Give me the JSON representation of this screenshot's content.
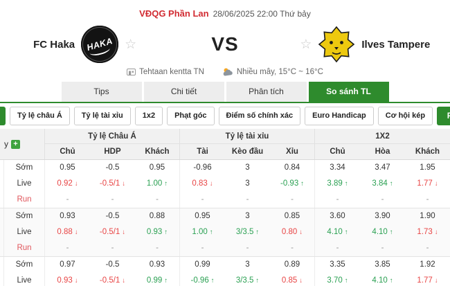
{
  "header": {
    "league": "VĐQG Phần Lan",
    "datetime": "28/06/2025 22:00 Thứ bảy",
    "vs": "VS",
    "home": {
      "name": "FC Haka",
      "logo_text": "HAKA"
    },
    "away": {
      "name": "Ilves Tampere"
    },
    "venue": "Tehtaan kentta TN",
    "weather": "Nhiều mây, 15°C ~ 16°C"
  },
  "tabs": [
    {
      "label": "Tips",
      "active": false
    },
    {
      "label": "Chi tiết",
      "active": false
    },
    {
      "label": "Phân tích",
      "active": false
    },
    {
      "label": "So sánh TL",
      "active": true
    }
  ],
  "filters": {
    "buttons": [
      "Tỷ lệ châu Á",
      "Tỷ lệ tài xỉu",
      "1x2",
      "Phạt góc",
      "Điểm số chính xác",
      "Euro Handicap",
      "Cơ hội kép"
    ],
    "ft": "FT"
  },
  "table": {
    "company_col": "y",
    "groups_header": [
      "Tỷ lệ Châu Á",
      "Tỷ lệ tài xỉu",
      "1X2"
    ],
    "sub_headers": [
      "Chủ",
      "HDP",
      "Khách",
      "Tài",
      "Kèo đầu",
      "Xỉu",
      "Chủ",
      "Hòa",
      "Khách"
    ],
    "bookmakers": [
      {
        "rows": [
          {
            "label": "Sớm",
            "type": "early",
            "cells": [
              {
                "v": "0.95"
              },
              {
                "v": "-0.5"
              },
              {
                "v": "0.95"
              },
              {
                "v": "-0.96"
              },
              {
                "v": "3"
              },
              {
                "v": "0.84"
              },
              {
                "v": "3.34"
              },
              {
                "v": "3.47"
              },
              {
                "v": "1.95"
              }
            ]
          },
          {
            "label": "Live",
            "type": "live",
            "cells": [
              {
                "v": "0.92",
                "d": "down"
              },
              {
                "v": "-0.5/1",
                "d": "down"
              },
              {
                "v": "1.00",
                "d": "up"
              },
              {
                "v": "0.83",
                "d": "down"
              },
              {
                "v": "3"
              },
              {
                "v": "-0.93",
                "d": "up"
              },
              {
                "v": "3.89",
                "d": "up"
              },
              {
                "v": "3.84",
                "d": "up"
              },
              {
                "v": "1.77",
                "d": "down"
              }
            ]
          },
          {
            "label": "Run",
            "type": "run",
            "cells": [
              {
                "v": "-"
              },
              {
                "v": "-"
              },
              {
                "v": "-"
              },
              {
                "v": "-"
              },
              {
                "v": "-"
              },
              {
                "v": "-"
              },
              {
                "v": "-"
              },
              {
                "v": "-"
              },
              {
                "v": "-"
              }
            ]
          }
        ]
      },
      {
        "rows": [
          {
            "label": "Sớm",
            "type": "early",
            "cells": [
              {
                "v": "0.93"
              },
              {
                "v": "-0.5"
              },
              {
                "v": "0.88"
              },
              {
                "v": "0.95"
              },
              {
                "v": "3"
              },
              {
                "v": "0.85"
              },
              {
                "v": "3.60"
              },
              {
                "v": "3.90"
              },
              {
                "v": "1.90"
              }
            ]
          },
          {
            "label": "Live",
            "type": "live",
            "cells": [
              {
                "v": "0.88",
                "d": "down"
              },
              {
                "v": "-0.5/1",
                "d": "down"
              },
              {
                "v": "0.93",
                "d": "up"
              },
              {
                "v": "1.00",
                "d": "up"
              },
              {
                "v": "3/3.5",
                "d": "up"
              },
              {
                "v": "0.80",
                "d": "down"
              },
              {
                "v": "4.10",
                "d": "up"
              },
              {
                "v": "4.10",
                "d": "up"
              },
              {
                "v": "1.73",
                "d": "down"
              }
            ]
          },
          {
            "label": "Run",
            "type": "run",
            "cells": [
              {
                "v": "-"
              },
              {
                "v": "-"
              },
              {
                "v": "-"
              },
              {
                "v": "-"
              },
              {
                "v": "-"
              },
              {
                "v": "-"
              },
              {
                "v": "-"
              },
              {
                "v": "-"
              },
              {
                "v": "-"
              }
            ]
          }
        ]
      },
      {
        "rows": [
          {
            "label": "Sớm",
            "type": "early",
            "cells": [
              {
                "v": "0.97"
              },
              {
                "v": "-0.5"
              },
              {
                "v": "0.93"
              },
              {
                "v": "0.99"
              },
              {
                "v": "3"
              },
              {
                "v": "0.89"
              },
              {
                "v": "3.35"
              },
              {
                "v": "3.85"
              },
              {
                "v": "1.92"
              }
            ]
          },
          {
            "label": "Live",
            "type": "live",
            "cells": [
              {
                "v": "0.93",
                "d": "down"
              },
              {
                "v": "-0.5/1",
                "d": "down"
              },
              {
                "v": "0.99",
                "d": "up"
              },
              {
                "v": "-0.96",
                "d": "up"
              },
              {
                "v": "3/3.5",
                "d": "up"
              },
              {
                "v": "0.85",
                "d": "down"
              },
              {
                "v": "3.70",
                "d": "up"
              },
              {
                "v": "4.10",
                "d": "up"
              },
              {
                "v": "1.77",
                "d": "down"
              }
            ]
          }
        ]
      }
    ]
  },
  "colors": {
    "accent_green": "#2e8b2d",
    "league_red": "#d12b32",
    "odds_up": "#2aa052",
    "odds_down": "#e84444",
    "run_red": "#e0565c"
  }
}
